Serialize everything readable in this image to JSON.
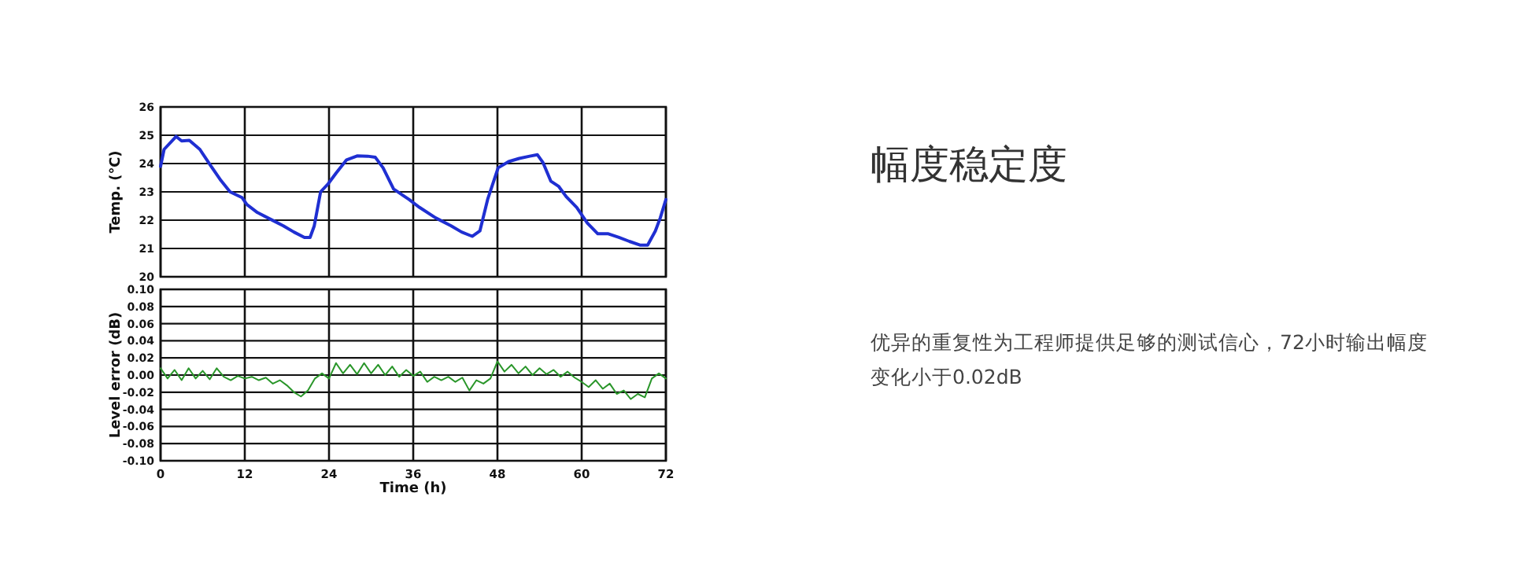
{
  "chart_data": [
    {
      "type": "line",
      "ylabel": "Temp. (℃)",
      "xlim": [
        0,
        72
      ],
      "ylim": [
        20,
        26
      ],
      "xticks": [
        0,
        12,
        24,
        36,
        48,
        60,
        72
      ],
      "yticks": [
        20,
        21,
        22,
        23,
        24,
        25,
        26
      ],
      "tick_labels": "y",
      "grid": true,
      "marker": "none",
      "line_style": "solid",
      "series": [
        {
          "color": "#1f2fd2",
          "x": [
            0,
            0.5,
            1.9,
            2.2,
            3.0,
            4.1,
            5.6,
            7.1,
            8.6,
            9.9,
            11.6,
            12.3,
            13.8,
            16.0,
            17.5,
            19.0,
            20.5,
            21.3,
            21.9,
            22.8,
            23.9,
            25.0,
            26.5,
            28.0,
            29.5,
            30.6,
            31.7,
            33.2,
            35.4,
            36.9,
            39.2,
            41.4,
            42.9,
            44.4,
            45.5,
            46.6,
            48.1,
            49.6,
            51.1,
            52.6,
            53.7,
            54.5,
            55.6,
            56.7,
            57.8,
            59.3,
            60.8,
            62.3,
            63.8,
            65.3,
            66.8,
            68.3,
            69.4,
            70.5,
            71.2,
            72
          ],
          "values": [
            23.9,
            24.5,
            24.87,
            24.96,
            24.8,
            24.82,
            24.5,
            23.94,
            23.4,
            23.0,
            22.8,
            22.55,
            22.27,
            21.99,
            21.8,
            21.58,
            21.39,
            21.39,
            21.8,
            23.0,
            23.29,
            23.66,
            24.13,
            24.27,
            24.26,
            24.22,
            23.85,
            23.1,
            22.73,
            22.45,
            22.08,
            21.8,
            21.58,
            21.43,
            21.62,
            22.73,
            23.85,
            24.07,
            24.18,
            24.26,
            24.31,
            24.03,
            23.38,
            23.2,
            22.83,
            22.45,
            21.9,
            21.52,
            21.52,
            21.39,
            21.25,
            21.12,
            21.12,
            21.62,
            22.08,
            22.73
          ]
        }
      ]
    },
    {
      "type": "line",
      "xlabel": "Time (h)",
      "ylabel": "Level error (dB)",
      "xlim": [
        0,
        72
      ],
      "ylim": [
        -0.1,
        0.1
      ],
      "xticks": [
        0,
        12,
        24,
        36,
        48,
        60,
        72
      ],
      "yticks": [
        {
          "value": -0.1,
          "label": "-0.10"
        },
        {
          "value": -0.08,
          "label": "-0.08"
        },
        {
          "value": -0.06,
          "label": "-0.06"
        },
        {
          "value": -0.04,
          "label": "-0.04"
        },
        {
          "value": -0.02,
          "label": "-0.02"
        },
        {
          "value": 0,
          "label": "0.00"
        },
        {
          "value": 0.02,
          "label": "0.02"
        },
        {
          "value": 0.04,
          "label": "0.04"
        },
        {
          "value": 0.06,
          "label": "0.06"
        },
        {
          "value": 0.08,
          "label": "0.08"
        },
        {
          "value": 0.1,
          "label": "0.10"
        }
      ],
      "grid": true,
      "marker": "none",
      "line_style": "solid",
      "series": [
        {
          "color": "#2a962a",
          "x": [
            0,
            1,
            2,
            3,
            4,
            5,
            6,
            7,
            8,
            9,
            10,
            11,
            12,
            13,
            14,
            15,
            16,
            17,
            18,
            19,
            20,
            21,
            22,
            23,
            24,
            25,
            26,
            27,
            28,
            29,
            30,
            31,
            32,
            33,
            34,
            35,
            36,
            37,
            38,
            39,
            40,
            41,
            42,
            43,
            44,
            45,
            46,
            47,
            48,
            49,
            50,
            51,
            52,
            53,
            54,
            55,
            56,
            57,
            58,
            59,
            60,
            61,
            62,
            63,
            64,
            65,
            66,
            67,
            68,
            69,
            70,
            71,
            72
          ],
          "values": [
            0.008,
            -0.004,
            0.006,
            -0.006,
            0.008,
            -0.004,
            0.005,
            -0.005,
            0.008,
            -0.002,
            -0.006,
            -0.001,
            -0.004,
            -0.002,
            -0.006,
            -0.003,
            -0.01,
            -0.006,
            -0.012,
            -0.02,
            -0.025,
            -0.018,
            -0.004,
            0.002,
            -0.004,
            0.014,
            0.002,
            0.012,
            0.001,
            0.014,
            0.002,
            0.012,
            0.0,
            0.01,
            -0.002,
            0.006,
            -0.001,
            0.004,
            -0.008,
            -0.002,
            -0.006,
            -0.002,
            -0.008,
            -0.003,
            -0.018,
            -0.006,
            -0.01,
            -0.004,
            0.016,
            0.004,
            0.012,
            0.002,
            0.01,
            0.0,
            0.008,
            0.001,
            0.006,
            -0.002,
            0.004,
            -0.003,
            -0.008,
            -0.014,
            -0.006,
            -0.016,
            -0.01,
            -0.022,
            -0.018,
            -0.028,
            -0.022,
            -0.026,
            -0.004,
            0.002,
            -0.004
          ]
        }
      ]
    },
    {
      "type": "other",
      "title": "幅度稳定度",
      "annotations": [
        "优异的重复性为工程师提供足够的测试信心，72小时输出幅度变化小于0.02dB"
      ]
    }
  ]
}
